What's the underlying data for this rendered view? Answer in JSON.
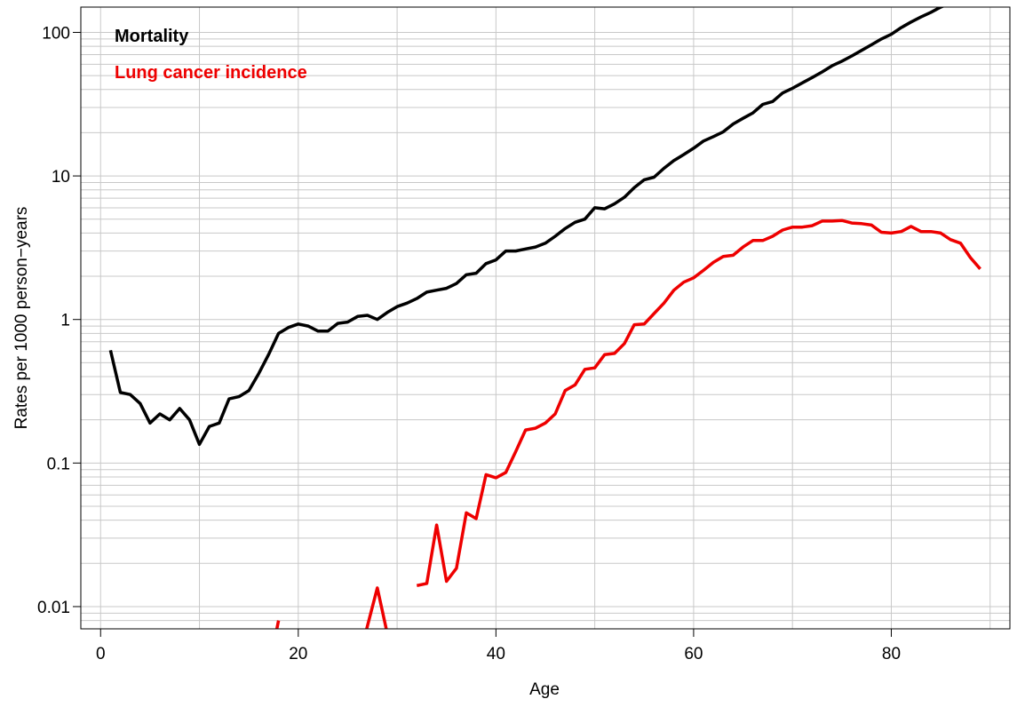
{
  "chart_data": {
    "type": "line",
    "xlabel": "Age",
    "ylabel": "Rates per 1000 person−years",
    "xlim": [
      -2,
      92
    ],
    "ylim": [
      0.007,
      150
    ],
    "y_scale": "log",
    "grid": true,
    "legend_position": "top-left",
    "x_ticks": [
      0,
      20,
      40,
      60,
      80
    ],
    "x_tick_labels": [
      "0",
      "20",
      "40",
      "60",
      "80"
    ],
    "y_ticks": [
      0.01,
      0.1,
      1,
      10,
      100
    ],
    "y_tick_labels": [
      "0.01",
      "0.1",
      "1",
      "10",
      "100"
    ],
    "series": [
      {
        "name": "Mortality",
        "color": "#000000",
        "segments": [
          {
            "x": [
              1,
              2,
              3,
              4,
              5,
              6,
              7,
              8,
              9,
              10,
              11,
              12,
              13,
              14,
              15,
              16,
              17,
              18,
              19,
              20,
              21,
              22,
              23,
              24,
              25,
              26,
              27,
              28,
              29,
              30,
              31,
              32,
              33,
              34,
              35,
              36,
              37,
              38,
              39,
              40,
              41,
              42,
              43,
              44,
              45,
              46,
              47,
              48,
              49,
              50,
              51,
              52,
              53,
              54,
              55,
              56,
              57,
              58,
              59,
              60,
              61,
              62,
              63,
              64,
              65,
              66,
              67,
              68,
              69,
              70,
              71,
              72,
              73,
              74,
              75,
              76,
              77,
              78,
              79,
              80,
              81,
              82,
              83,
              84,
              85,
              86
            ],
            "y": [
              0.61,
              0.31,
              0.3,
              0.26,
              0.19,
              0.22,
              0.2,
              0.24,
              0.2,
              0.135,
              0.18,
              0.19,
              0.28,
              0.29,
              0.32,
              0.42,
              0.57,
              0.8,
              0.88,
              0.93,
              0.9,
              0.83,
              0.83,
              0.94,
              0.96,
              1.05,
              1.07,
              1.0,
              1.12,
              1.23,
              1.3,
              1.4,
              1.55,
              1.6,
              1.65,
              1.78,
              2.05,
              2.1,
              2.45,
              2.6,
              3.0,
              3.0,
              3.1,
              3.2,
              3.4,
              3.8,
              4.3,
              4.75,
              5.0,
              6.0,
              5.9,
              6.4,
              7.1,
              8.3,
              9.4,
              9.8,
              11.3,
              12.8,
              14.1,
              15.6,
              17.5,
              18.8,
              20.3,
              23.0,
              25.2,
              27.5,
              31.5,
              33.0,
              37.8,
              40.8,
              44.5,
              48.5,
              53.0,
              58.5,
              63.0,
              68.5,
              75.0,
              82.0,
              90.0,
              97.0,
              108,
              118,
              128,
              138,
              150,
              160
            ]
          }
        ]
      },
      {
        "name": "Lung cancer incidence",
        "color": "#ee0000",
        "segments": [
          {
            "x": [
              17.8,
              18
            ],
            "y": [
              0.0068,
              0.008
            ]
          },
          {
            "x": [
              26.8,
              28,
              29
            ],
            "y": [
              0.0065,
              0.0135,
              0.0065
            ]
          },
          {
            "x": [
              32,
              33,
              34,
              35,
              36,
              37,
              38,
              39,
              40,
              41,
              42,
              43,
              44,
              45,
              46,
              47,
              48,
              49,
              50,
              51,
              52,
              53,
              54,
              55,
              56,
              57,
              58,
              59,
              60,
              61,
              62,
              63,
              64,
              65,
              66,
              67,
              68,
              69,
              70,
              71,
              72,
              73,
              74,
              75,
              76,
              77,
              78,
              79,
              80,
              81,
              82,
              83,
              84,
              85,
              86,
              87,
              88,
              89
            ],
            "y": [
              0.014,
              0.0145,
              0.037,
              0.015,
              0.0185,
              0.045,
              0.041,
              0.083,
              0.079,
              0.086,
              0.12,
              0.17,
              0.175,
              0.19,
              0.22,
              0.32,
              0.35,
              0.45,
              0.46,
              0.57,
              0.58,
              0.68,
              0.92,
              0.93,
              1.1,
              1.3,
              1.6,
              1.82,
              1.95,
              2.2,
              2.5,
              2.75,
              2.8,
              3.2,
              3.55,
              3.55,
              3.8,
              4.2,
              4.4,
              4.4,
              4.5,
              4.85,
              4.85,
              4.9,
              4.7,
              4.65,
              4.55,
              4.05,
              4.0,
              4.1,
              4.45,
              4.1,
              4.1,
              4.0,
              3.6,
              3.4,
              2.7,
              2.25
            ]
          }
        ]
      }
    ]
  }
}
